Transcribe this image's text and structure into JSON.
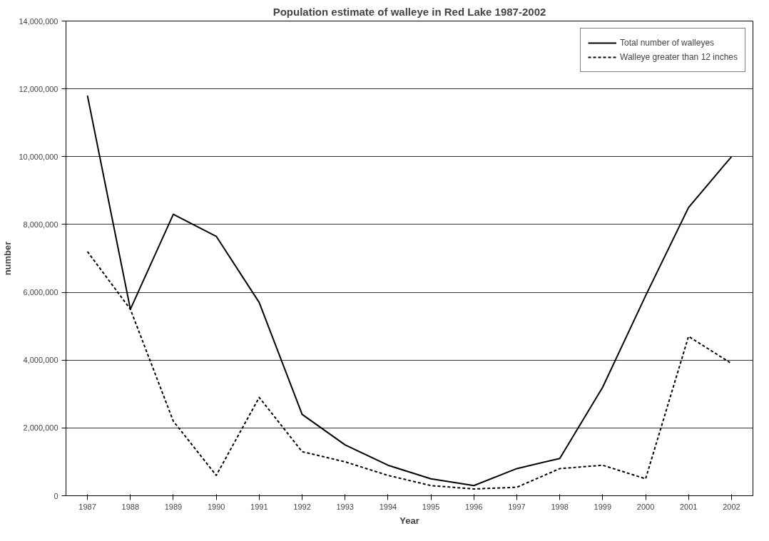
{
  "chart_data": {
    "type": "line",
    "title": "Population estimate of walleye in Red Lake 1987-2002",
    "xlabel": "Year",
    "ylabel": "number",
    "categories": [
      "1987",
      "1988",
      "1989",
      "1990",
      "1991",
      "1992",
      "1993",
      "1994",
      "1995",
      "1996",
      "1997",
      "1998",
      "1999",
      "2000",
      "2001",
      "2002"
    ],
    "series": [
      {
        "name": "Total number of walleyes",
        "color": "#000000",
        "line_style": "solid",
        "values": [
          11800000,
          5500000,
          8300000,
          7650000,
          5700000,
          2400000,
          1500000,
          900000,
          500000,
          300000,
          800000,
          1100000,
          3200000,
          5900000,
          8500000,
          10000000
        ]
      },
      {
        "name": "Walleye greater than 12 inches",
        "color": "#000000",
        "line_style": "dotted",
        "values": [
          7200000,
          5500000,
          2200000,
          600000,
          2900000,
          1300000,
          1000000,
          600000,
          300000,
          200000,
          250000,
          800000,
          900000,
          500000,
          4700000,
          3900000
        ]
      }
    ],
    "ylim": [
      0,
      14000000
    ],
    "yticks": [
      {
        "value": 0,
        "label": "0"
      },
      {
        "value": 2000000,
        "label": "2,000,000"
      },
      {
        "value": 4000000,
        "label": "4,000,000"
      },
      {
        "value": 6000000,
        "label": "6,000,000"
      },
      {
        "value": 8000000,
        "label": "8,000,000"
      },
      {
        "value": 10000000,
        "label": "10,000,000"
      },
      {
        "value": 12000000,
        "label": "12,000,000"
      },
      {
        "value": 14000000,
        "label": "14,000,000"
      }
    ],
    "grid": "y",
    "legend": "top right",
    "marker": "none"
  }
}
